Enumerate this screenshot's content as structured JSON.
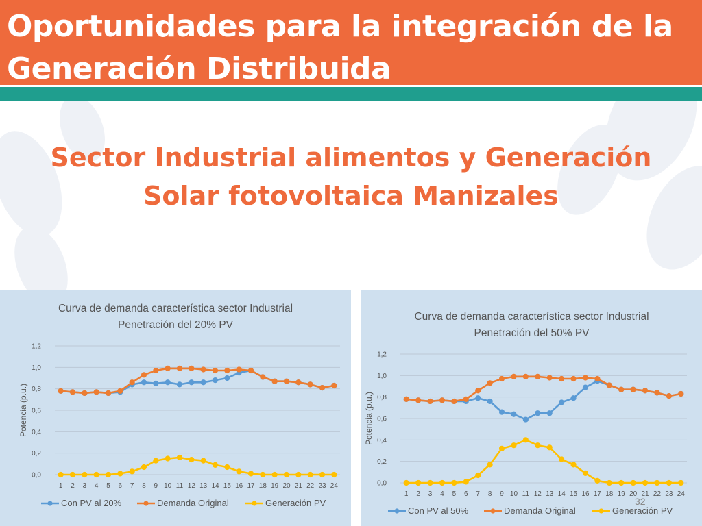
{
  "slide": {
    "title": "Oportunidades para la integración de la Generación Distribuida",
    "subtitle": "Sector Industrial alimentos y Generación Solar fotovoltaica Manizales",
    "page_number": "32"
  },
  "colors": {
    "header": "#ee6a3c",
    "teal": "#1f9e8e",
    "panel": "#cfe0ef",
    "series_con_pv": "#5b9bd5",
    "series_demanda": "#ed7d31",
    "series_generacion": "#ffc000"
  },
  "chart_data": [
    {
      "type": "line",
      "title": "Curva de demanda característica sector Industrial",
      "subtitle": "Penetración del 20% PV",
      "xlabel": "",
      "ylabel": "Potencia (p.u.)",
      "ylim": [
        0,
        1.2
      ],
      "yticks": [
        "0,0",
        "0,2",
        "0,4",
        "0,6",
        "0,8",
        "1,0",
        "1,2"
      ],
      "categories": [
        "1",
        "2",
        "3",
        "4",
        "5",
        "6",
        "7",
        "8",
        "9",
        "10",
        "11",
        "12",
        "13",
        "14",
        "15",
        "16",
        "17",
        "18",
        "19",
        "20",
        "21",
        "22",
        "23",
        "24"
      ],
      "legend_position": "bottom",
      "grid": true,
      "series": [
        {
          "name": "Con PV al 20%",
          "color": "#5b9bd5",
          "values": [
            0.78,
            0.77,
            0.76,
            0.77,
            0.76,
            0.77,
            0.84,
            0.86,
            0.85,
            0.86,
            0.84,
            0.86,
            0.86,
            0.88,
            0.9,
            0.95,
            0.97,
            0.91,
            0.87,
            0.87,
            0.86,
            0.84,
            0.81,
            0.83
          ]
        },
        {
          "name": "Demanda Original",
          "color": "#ed7d31",
          "values": [
            0.78,
            0.77,
            0.76,
            0.77,
            0.76,
            0.78,
            0.86,
            0.93,
            0.97,
            0.99,
            0.99,
            0.99,
            0.98,
            0.97,
            0.97,
            0.98,
            0.97,
            0.91,
            0.87,
            0.87,
            0.86,
            0.84,
            0.81,
            0.83
          ]
        },
        {
          "name": "Generación PV",
          "color": "#ffc000",
          "values": [
            0.0,
            0.0,
            0.0,
            0.0,
            0.0,
            0.01,
            0.03,
            0.07,
            0.13,
            0.15,
            0.16,
            0.14,
            0.13,
            0.09,
            0.07,
            0.03,
            0.01,
            0.0,
            0.0,
            0.0,
            0.0,
            0.0,
            0.0,
            0.0
          ]
        }
      ]
    },
    {
      "type": "line",
      "title": "Curva de demanda característica sector Industrial",
      "subtitle": "Penetración del 50% PV",
      "xlabel": "",
      "ylabel": "Potencia (p.u.)",
      "ylim": [
        0,
        1.2
      ],
      "yticks": [
        "0,0",
        "0,2",
        "0,4",
        "0,6",
        "0,8",
        "1,0",
        "1,2"
      ],
      "categories": [
        "1",
        "2",
        "3",
        "4",
        "5",
        "6",
        "7",
        "8",
        "9",
        "10",
        "11",
        "12",
        "13",
        "14",
        "15",
        "16",
        "17",
        "18",
        "19",
        "20",
        "21",
        "22",
        "23",
        "24"
      ],
      "legend_position": "bottom",
      "grid": true,
      "series": [
        {
          "name": "Con PV al 50%",
          "color": "#5b9bd5",
          "values": [
            0.78,
            0.77,
            0.76,
            0.77,
            0.76,
            0.76,
            0.79,
            0.76,
            0.66,
            0.64,
            0.59,
            0.65,
            0.65,
            0.75,
            0.79,
            0.89,
            0.95,
            0.91,
            0.87,
            0.87,
            0.86,
            0.84,
            0.81,
            0.83
          ]
        },
        {
          "name": "Demanda Original",
          "color": "#ed7d31",
          "values": [
            0.78,
            0.77,
            0.76,
            0.77,
            0.76,
            0.78,
            0.86,
            0.93,
            0.97,
            0.99,
            0.99,
            0.99,
            0.98,
            0.97,
            0.97,
            0.98,
            0.97,
            0.91,
            0.87,
            0.87,
            0.86,
            0.84,
            0.81,
            0.83
          ]
        },
        {
          "name": "Generación PV",
          "color": "#ffc000",
          "values": [
            0.0,
            0.0,
            0.0,
            0.0,
            0.0,
            0.01,
            0.07,
            0.17,
            0.32,
            0.35,
            0.4,
            0.35,
            0.33,
            0.22,
            0.17,
            0.09,
            0.02,
            0.0,
            0.0,
            0.0,
            0.0,
            0.0,
            0.0,
            0.0
          ]
        }
      ]
    }
  ]
}
